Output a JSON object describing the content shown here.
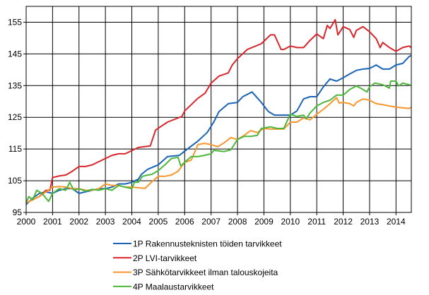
{
  "chart_data": {
    "type": "line",
    "title": "",
    "xlabel": "",
    "ylabel": "",
    "xlim": [
      2000,
      2014.58
    ],
    "ylim": [
      95,
      160
    ],
    "x_ticks": [
      "2000",
      "2001",
      "2002",
      "2003",
      "2004",
      "2005",
      "2006",
      "2007",
      "2008",
      "2009",
      "2010",
      "2011",
      "2012",
      "2013",
      "2014"
    ],
    "y_ticks": [
      "95",
      "105",
      "115",
      "125",
      "135",
      "145",
      "155"
    ],
    "grid": true,
    "legend_position": "bottom",
    "series": [
      {
        "name": "1P Rakennusteknisten  töiden tarvikkeet",
        "color": "#1a63b5",
        "x": [
          2000,
          2000.25,
          2000.5,
          2000.75,
          2001,
          2001.25,
          2001.5,
          2001.75,
          2002,
          2002.25,
          2002.5,
          2002.75,
          2003,
          2003.25,
          2003.5,
          2003.75,
          2004,
          2004.25,
          2004.36,
          2004.6,
          2005,
          2005.35,
          2005.8,
          2006.15,
          2006.5,
          2006.85,
          2007.1,
          2007.3,
          2007.65,
          2008,
          2008.2,
          2008.55,
          2008.9,
          2009.17,
          2009.4,
          2009.75,
          2010,
          2010.25,
          2010.5,
          2010.75,
          2011,
          2011.25,
          2011.5,
          2011.75,
          2012,
          2012.25,
          2012.5,
          2012.75,
          2013,
          2013.25,
          2013.5,
          2013.75,
          2014,
          2014.25,
          2014.5,
          2014.58
        ],
        "y": [
          97.5,
          99.5,
          101,
          101.5,
          101,
          102,
          102.5,
          102.5,
          101,
          101.5,
          102,
          102.5,
          102.5,
          103,
          104,
          104,
          104.5,
          105.5,
          107,
          108.6,
          110,
          112.6,
          113,
          115.3,
          117.5,
          120.2,
          123.5,
          126.8,
          129.3,
          129.7,
          131.5,
          133,
          129.7,
          126.8,
          125.7,
          125.7,
          125.7,
          127,
          130.8,
          131.5,
          131.5,
          134.6,
          137.1,
          136.4,
          137.5,
          138.7,
          139.8,
          140.2,
          140.4,
          141.5,
          140.2,
          140.2,
          141.5,
          142,
          144.2,
          144.5
        ]
      },
      {
        "name": "2P LVI-tarvikkeet",
        "color": "#d9262c",
        "x": [
          2000,
          2000.25,
          2000.5,
          2000.75,
          2000.9,
          2001,
          2001.25,
          2001.5,
          2001.75,
          2002,
          2002.25,
          2002.5,
          2002.75,
          2003,
          2003.25,
          2003.5,
          2003.75,
          2004,
          2004.25,
          2004.7,
          2004.9,
          2005.35,
          2005.9,
          2006,
          2006.5,
          2006.77,
          2007,
          2007.3,
          2007.65,
          2007.8,
          2008,
          2008.37,
          2008.9,
          2009.25,
          2009.4,
          2009.65,
          2009.75,
          2010,
          2010.25,
          2010.5,
          2010.75,
          2011,
          2011.25,
          2011.4,
          2011.5,
          2011.7,
          2011.8,
          2012,
          2012.25,
          2012.4,
          2012.5,
          2012.75,
          2013,
          2013.25,
          2013.4,
          2013.5,
          2013.75,
          2014,
          2014.25,
          2014.5,
          2014.58
        ],
        "y": [
          98,
          99,
          100,
          102,
          102,
          106,
          106.5,
          106.8,
          108,
          109.5,
          109.5,
          110,
          111,
          112,
          113,
          113.5,
          113.5,
          114.5,
          115.5,
          116,
          121,
          123.5,
          125.3,
          127,
          131,
          132.6,
          135.8,
          138,
          139,
          141.5,
          143.5,
          146.4,
          148.2,
          151,
          151,
          146.4,
          146.4,
          147.5,
          147,
          147,
          149.3,
          151.3,
          149.8,
          154,
          153,
          155.8,
          151,
          153.6,
          152.7,
          150.2,
          152.4,
          153.6,
          152,
          149.8,
          147,
          148.6,
          147,
          145.8,
          147,
          147.5,
          147
        ]
      },
      {
        "name": "3P Sähkötarvikkeet ilman talouskojeita",
        "color": "#f7962d",
        "x": [
          2000,
          2000.25,
          2000.5,
          2000.75,
          2001,
          2001.25,
          2001.5,
          2001.75,
          2002,
          2002.25,
          2002.5,
          2002.75,
          2003,
          2003.25,
          2003.5,
          2003.75,
          2004,
          2004.25,
          2004.5,
          2004.75,
          2005,
          2005.25,
          2005.5,
          2005.75,
          2006,
          2006.25,
          2006.5,
          2006.75,
          2007,
          2007.25,
          2007.5,
          2007.75,
          2008,
          2008.25,
          2008.5,
          2008.75,
          2009,
          2009.25,
          2009.5,
          2009.75,
          2010,
          2010.25,
          2010.5,
          2010.75,
          2011,
          2011.25,
          2011.5,
          2011.75,
          2011.85,
          2012,
          2012.25,
          2012.4,
          2012.5,
          2012.75,
          2013,
          2013.25,
          2013.5,
          2013.75,
          2014,
          2014.25,
          2014.5,
          2014.58
        ],
        "y": [
          98,
          99,
          100,
          101.5,
          103,
          103.2,
          103,
          102.5,
          102.5,
          102,
          102,
          102.5,
          104,
          103.5,
          103.5,
          103,
          103,
          102.8,
          102.6,
          104.6,
          106.4,
          106.4,
          106.8,
          108,
          110.8,
          111.5,
          116.4,
          116.8,
          116.4,
          115.7,
          117,
          118.6,
          118,
          119.3,
          120.8,
          120.2,
          121.5,
          121.3,
          121.3,
          121.3,
          123.5,
          123.5,
          124.8,
          124.2,
          126,
          127.5,
          129.3,
          131.2,
          129.5,
          129.7,
          129.3,
          128.6,
          129.7,
          130.8,
          130.4,
          129.3,
          129,
          128.6,
          128.2,
          128,
          127.8,
          128.2
        ]
      },
      {
        "name": "4P Maalaustarvikkeet",
        "color": "#4cb83a",
        "x": [
          2000,
          2000.1,
          2000.25,
          2000.4,
          2000.6,
          2000.75,
          2000.85,
          2001,
          2001.25,
          2001.5,
          2001.65,
          2001.8,
          2002,
          2002.25,
          2002.5,
          2002.75,
          2003,
          2003.25,
          2003.5,
          2003.75,
          2004,
          2004.1,
          2004.25,
          2004.4,
          2004.6,
          2004.75,
          2005,
          2005.25,
          2005.5,
          2005.75,
          2005.85,
          2006,
          2006.25,
          2006.5,
          2006.75,
          2007,
          2007.1,
          2007.5,
          2007.75,
          2008,
          2008.25,
          2008.5,
          2008.75,
          2008.9,
          2009.25,
          2009.5,
          2009.75,
          2010,
          2010.25,
          2010.5,
          2010.6,
          2010.75,
          2011,
          2011.25,
          2011.5,
          2011.75,
          2012,
          2012.25,
          2012.5,
          2012.75,
          2012.9,
          2013,
          2013.2,
          2013.5,
          2013.75,
          2013.8,
          2014,
          2014.1,
          2014.25,
          2014.5,
          2014.58
        ],
        "y": [
          98,
          100,
          99,
          102,
          101,
          99.5,
          98.5,
          101,
          102.5,
          102,
          104.5,
          102,
          102.5,
          101.7,
          102.3,
          102,
          102.5,
          102,
          103.5,
          103,
          102.5,
          104.5,
          104.5,
          106.4,
          106.8,
          107,
          108.2,
          110,
          112,
          112.4,
          109.7,
          110.8,
          112.6,
          112.6,
          113,
          113.5,
          114.6,
          114.2,
          114.8,
          118,
          119,
          119,
          119.3,
          121.5,
          122,
          121.5,
          121.5,
          126,
          125.3,
          125.7,
          124.5,
          126.4,
          128.6,
          129.7,
          130.4,
          132,
          132,
          133.8,
          134.9,
          133.8,
          133,
          134.6,
          135.8,
          135.3,
          134.2,
          136.4,
          136.4,
          134.9,
          135.8,
          135.3,
          135
        ]
      }
    ]
  }
}
